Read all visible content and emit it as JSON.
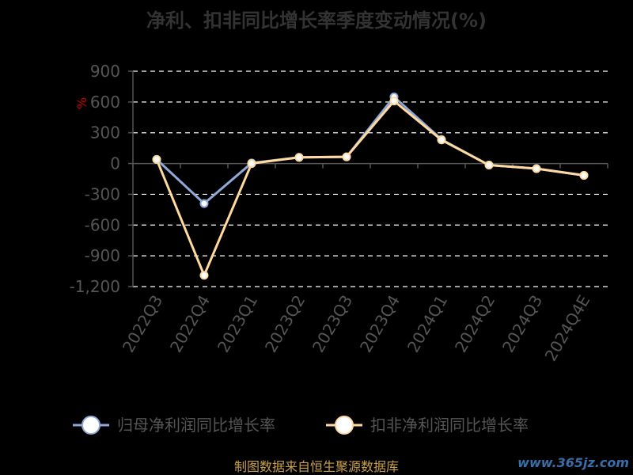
{
  "chart_data": {
    "type": "line",
    "title": "净利、扣非同比增长率季度变动情况(%)",
    "unit_label": "%",
    "categories": [
      "2022Q3",
      "2022Q4",
      "2023Q1",
      "2023Q2",
      "2023Q3",
      "2023Q4",
      "2024Q1",
      "2024Q2",
      "2024Q3",
      "2024Q4E"
    ],
    "ylim": [
      -1200,
      900
    ],
    "yticks": [
      900,
      600,
      300,
      0,
      -300,
      -600,
      -900,
      -1200
    ],
    "ytick_labels": [
      "900",
      "600",
      "300",
      "0",
      "-300",
      "-600",
      "-900",
      "-1,200"
    ],
    "grid": true,
    "legend_position": "bottom",
    "series": [
      {
        "name": "归母净利润同比增长率",
        "color": "#8fa8d8",
        "values": [
          40,
          -390,
          5,
          60,
          65,
          650,
          235,
          -15,
          -50,
          -115
        ]
      },
      {
        "name": "扣非净利润同比增长率",
        "color": "#ffd9a0",
        "values": [
          40,
          -1090,
          0,
          60,
          65,
          610,
          230,
          -15,
          -50,
          -115
        ]
      }
    ]
  },
  "footer": {
    "source": "制图数据来自恒生聚源数据库",
    "watermark": "www.365jz.com"
  }
}
